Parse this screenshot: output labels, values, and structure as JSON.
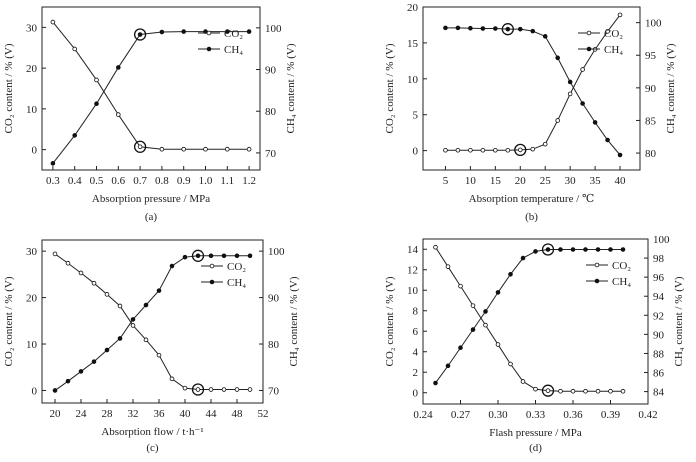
{
  "chart_data": [
    {
      "type": "line",
      "caption": "(a)",
      "xlabel": "Absorption pressure / MPa",
      "ylabel_left": "CO₂ content / % (V)",
      "ylabel_right": "CH₄ content / % (V)",
      "xlim": [
        0.25,
        1.25
      ],
      "ylim_left": [
        -5,
        35
      ],
      "ylim_right": [
        65.9,
        105
      ],
      "xticks": [
        0.3,
        0.4,
        0.5,
        0.6,
        0.7,
        0.8,
        0.9,
        1.0,
        1.1,
        1.2
      ],
      "xtick_decimals": 1,
      "yticks_left": [
        0,
        10,
        20,
        30
      ],
      "yticks_right": [
        70,
        80,
        90,
        100
      ],
      "legend": "upper-right",
      "x": [
        0.3,
        0.4,
        0.5,
        0.6,
        0.7,
        0.8,
        0.9,
        1.0,
        1.1,
        1.2
      ],
      "series": [
        {
          "name": "CO₂",
          "axis": "left",
          "marker": "open",
          "values": [
            31.3,
            24.7,
            17.1,
            8.6,
            0.7,
            0.1,
            0.1,
            0.1,
            0.1,
            0.1
          ]
        },
        {
          "name": "CH₄",
          "axis": "right",
          "marker": "filled",
          "values": [
            67.5,
            74.2,
            81.8,
            90.5,
            98.4,
            99.0,
            99.1,
            99.1,
            99.1,
            99.1
          ]
        }
      ],
      "highlights": [
        {
          "series": 0,
          "x": 0.7
        },
        {
          "series": 1,
          "x": 0.7
        }
      ]
    },
    {
      "type": "line",
      "caption": "(b)",
      "xlabel": "Absorption temperature / ℃",
      "ylabel_left": "CO₂ content / % (V)",
      "ylabel_right": "CH₄ content / % (V)",
      "xlim": [
        0.5,
        44
      ],
      "ylim_left": [
        -2.7,
        20
      ],
      "ylim_right": [
        77.4,
        102.4
      ],
      "xticks": [
        5,
        10,
        15,
        20,
        25,
        30,
        35,
        40
      ],
      "xtick_decimals": 0,
      "yticks_left": [
        0,
        5,
        10,
        15,
        20
      ],
      "yticks_right": [
        80,
        85,
        90,
        95,
        100
      ],
      "legend": "upper-right",
      "x": [
        5,
        7.5,
        10,
        12.5,
        15,
        17.5,
        20,
        22.5,
        25,
        27.5,
        30,
        32.5,
        35,
        37.5,
        40
      ],
      "series": [
        {
          "name": "CO₂",
          "axis": "left",
          "marker": "open",
          "values": [
            0.05,
            0.05,
            0.05,
            0.05,
            0.05,
            0.05,
            0.1,
            0.2,
            0.9,
            4.2,
            7.9,
            11.3,
            14.1,
            16.6,
            18.9
          ]
        },
        {
          "name": "CH₄",
          "axis": "right",
          "marker": "filled",
          "values": [
            99.2,
            99.2,
            99.15,
            99.1,
            99.1,
            99.0,
            99.0,
            98.7,
            97.9,
            94.6,
            90.9,
            87.6,
            84.7,
            82.0,
            79.7
          ]
        }
      ],
      "highlights": [
        {
          "series": 1,
          "x": 17.5
        },
        {
          "series": 0,
          "x": 20
        }
      ]
    },
    {
      "type": "line",
      "caption": "(c)",
      "xlabel": "Absorption flow / t·h⁻¹",
      "ylabel_left": "CO₂ content / % (V)",
      "ylabel_right": "CH₄ content / % (V)",
      "xlim": [
        18,
        52
      ],
      "ylim_left": [
        -2.7,
        32.4
      ],
      "ylim_right": [
        67.3,
        102.4
      ],
      "xticks": [
        20,
        24,
        28,
        32,
        36,
        40,
        44,
        48,
        52
      ],
      "xtick_decimals": 0,
      "yticks_left": [
        0,
        10,
        20,
        30
      ],
      "yticks_right": [
        70,
        80,
        90,
        100
      ],
      "legend": "upper-right",
      "x": [
        20,
        22,
        24,
        26,
        28,
        30,
        32,
        34,
        36,
        38,
        40,
        42,
        44,
        46,
        48,
        50
      ],
      "series": [
        {
          "name": "CO₂",
          "axis": "left",
          "marker": "open",
          "values": [
            29.4,
            27.4,
            25.3,
            23.1,
            20.7,
            18.2,
            14.0,
            10.9,
            7.6,
            2.5,
            0.5,
            0.2,
            0.2,
            0.2,
            0.2,
            0.2
          ]
        },
        {
          "name": "CH₄",
          "axis": "right",
          "marker": "filled",
          "values": [
            70.0,
            72.0,
            74.1,
            76.2,
            78.7,
            81.2,
            85.3,
            88.4,
            91.5,
            96.8,
            98.7,
            99.0,
            99.0,
            99.0,
            99.0,
            99.0
          ]
        }
      ],
      "highlights": [
        {
          "series": 1,
          "x": 42
        },
        {
          "series": 0,
          "x": 42
        }
      ]
    },
    {
      "type": "line",
      "caption": "(d)",
      "xlabel": "Flash pressure / MPa",
      "ylabel_left": "CO₂ content / % (V)",
      "ylabel_right": "CH₄ content / % (V)",
      "xlim": [
        0.24,
        0.42
      ],
      "ylim_left": [
        -1.1,
        15.0
      ],
      "ylim_right": [
        82.7,
        100
      ],
      "xticks": [
        0.24,
        0.27,
        0.3,
        0.33,
        0.36,
        0.39,
        0.42
      ],
      "xtick_decimals": 2,
      "yticks_left": [
        0,
        2,
        4,
        6,
        8,
        10,
        12,
        14
      ],
      "yticks_right": [
        84,
        86,
        88,
        90,
        92,
        94,
        96,
        98,
        100
      ],
      "legend": "upper-right",
      "x": [
        0.25,
        0.26,
        0.27,
        0.28,
        0.29,
        0.3,
        0.31,
        0.32,
        0.33,
        0.34,
        0.35,
        0.36,
        0.37,
        0.38,
        0.39,
        0.4
      ],
      "series": [
        {
          "name": "CO₂",
          "axis": "left",
          "marker": "open",
          "values": [
            14.2,
            12.3,
            10.4,
            8.5,
            6.6,
            4.7,
            2.8,
            1.1,
            0.35,
            0.2,
            0.15,
            0.15,
            0.15,
            0.15,
            0.15,
            0.15
          ]
        },
        {
          "name": "CH₄",
          "axis": "right",
          "marker": "filled",
          "values": [
            84.9,
            86.7,
            88.6,
            90.5,
            92.4,
            94.4,
            96.3,
            98.0,
            98.7,
            98.9,
            98.9,
            98.9,
            98.9,
            98.9,
            98.9,
            98.9
          ]
        }
      ],
      "highlights": [
        {
          "series": 1,
          "x": 0.34
        },
        {
          "series": 0,
          "x": 0.34
        }
      ]
    }
  ]
}
